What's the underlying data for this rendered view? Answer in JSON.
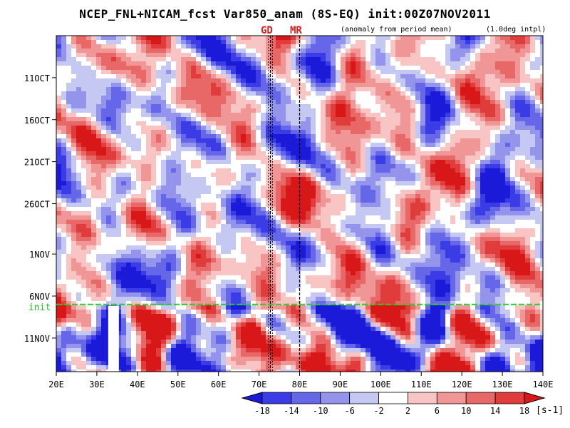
{
  "header": {
    "title": "NCEP_FNL+NICAM_fcst Var850_anam (8S-EQ) init:00Z07NOV2011",
    "subnote": "(anomaly from period mean)",
    "interp_note": "(1.0deg intpl)"
  },
  "markers": [
    {
      "label": "GD",
      "lon": 72.8,
      "color": "#d42020"
    },
    {
      "label": "MR",
      "lon": 80.0,
      "color": "#d42020"
    }
  ],
  "init_label": "init",
  "colorbar": {
    "unit": "[s-1]",
    "ticks": [
      "-18",
      "-14",
      "-10",
      "-6",
      "-2",
      "2",
      "6",
      "10",
      "14",
      "18"
    ],
    "colors": [
      "#1a1ad8",
      "#3c3ce6",
      "#6666e8",
      "#9494ec",
      "#c4c8f2",
      "#ffffff",
      "#f8c4c4",
      "#f09696",
      "#e86868",
      "#e03c3c",
      "#d81818"
    ]
  },
  "chart_data": {
    "type": "heatmap",
    "title": "NCEP_FNL+NICAM_fcst Var850_anam (8S-EQ) init:00Z07NOV2011",
    "x_axis": {
      "range": [
        20,
        140
      ],
      "ticks": [
        "20E",
        "30E",
        "40E",
        "50E",
        "60E",
        "70E",
        "80E",
        "90E",
        "100E",
        "110E",
        "120E",
        "130E",
        "140E"
      ]
    },
    "y_axis": {
      "range": [
        "06OCT2011",
        "15NOV2011"
      ],
      "ticks": [
        "11OCT",
        "16OCT",
        "21OCT",
        "26OCT",
        "1NOV",
        "6NOV",
        "11NOV"
      ],
      "inverted": true
    },
    "init_date": "07NOV2011",
    "legend_placement": "bottom",
    "levels": [
      -18,
      -14,
      -10,
      -6,
      -2,
      2,
      6,
      10,
      14,
      18
    ]
  }
}
